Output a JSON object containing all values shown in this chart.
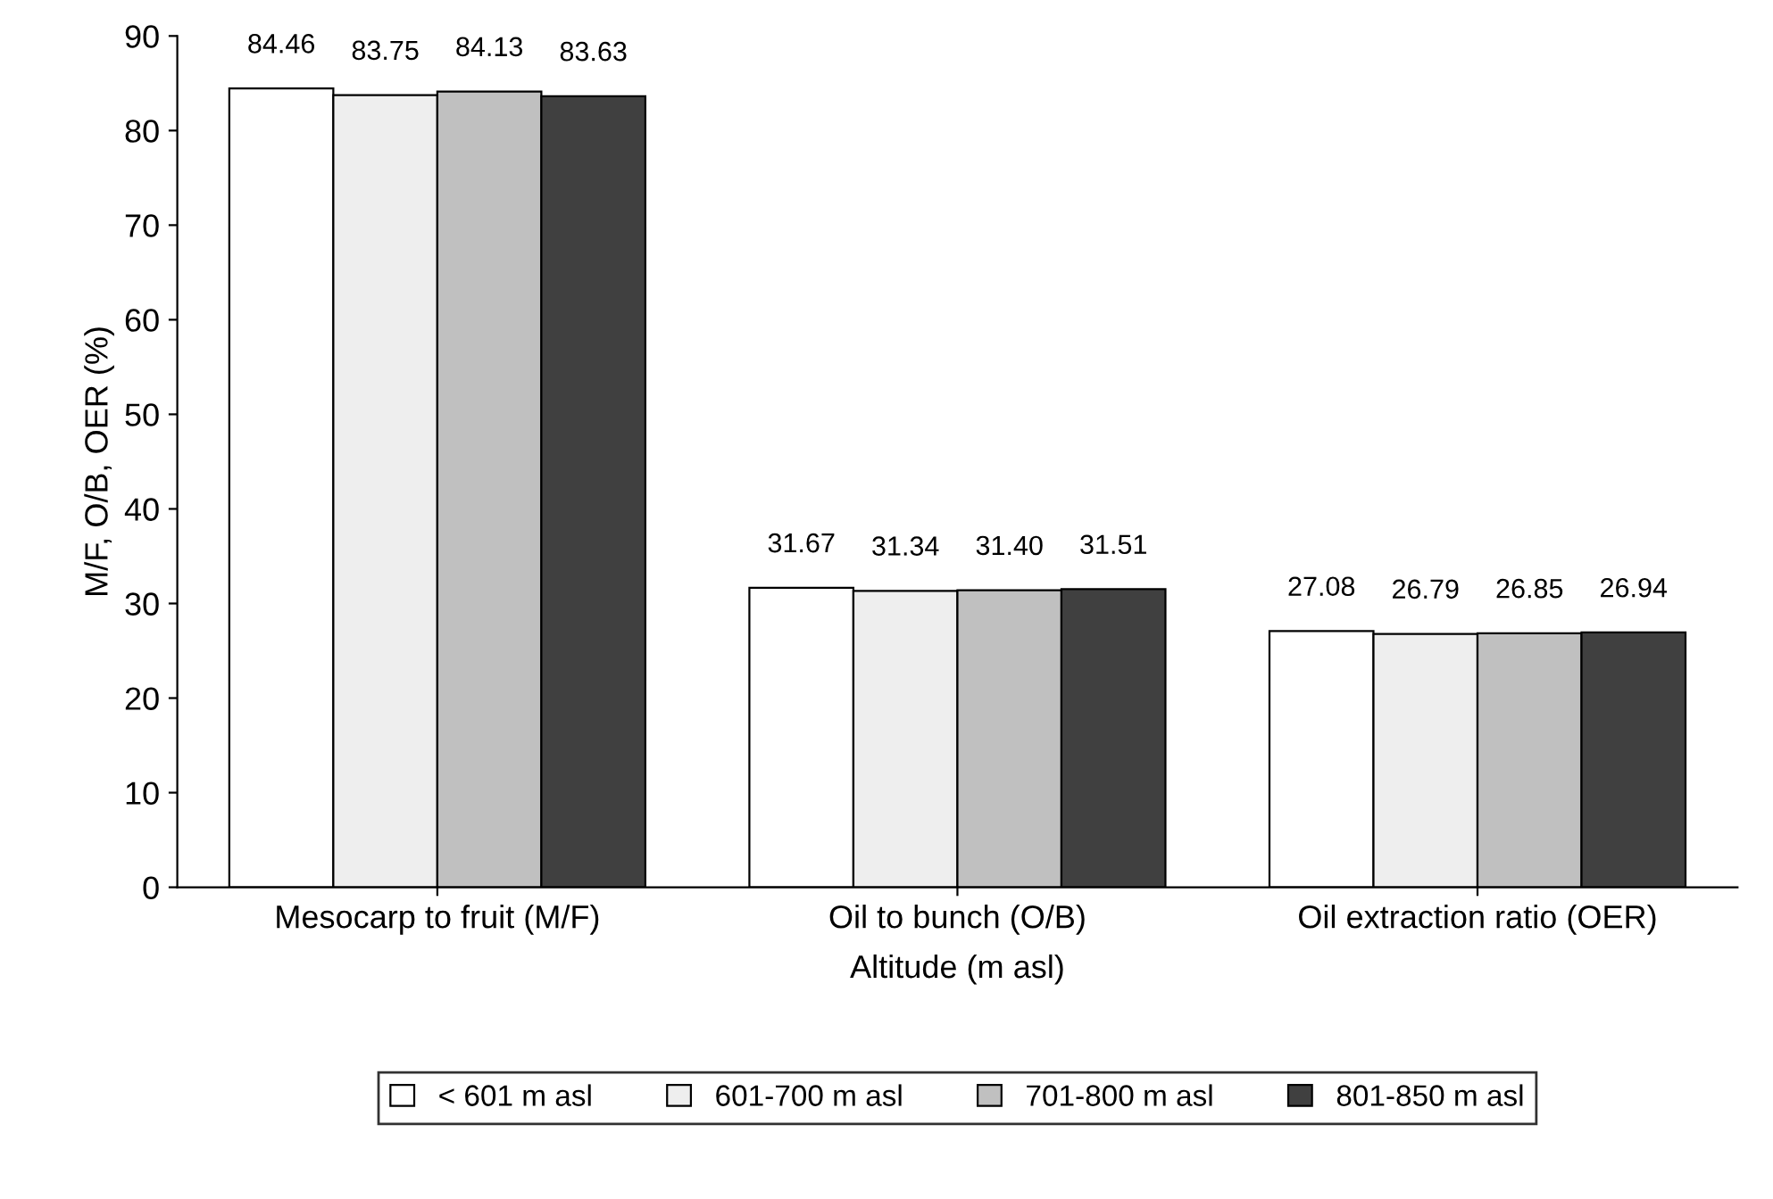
{
  "chart_data": {
    "type": "bar",
    "xlabel": "Altitude (m asl)",
    "ylabel": "M/F, O/B, OER (%)",
    "categories": [
      "Mesocarp to fruit (M/F)",
      "Oil to bunch (O/B)",
      "Oil extraction ratio (OER)"
    ],
    "series": [
      {
        "name": "< 601 m asl",
        "color": "#ffffff",
        "values": [
          84.46,
          31.67,
          27.08
        ]
      },
      {
        "name": "601-700 m asl",
        "color": "#eeeeee",
        "values": [
          83.75,
          31.34,
          26.79
        ]
      },
      {
        "name": "701-800 m asl",
        "color": "#c0c0c0",
        "values": [
          84.13,
          31.4,
          26.85
        ]
      },
      {
        "name": "801-850 m asl",
        "color": "#404040",
        "values": [
          83.63,
          31.51,
          26.94
        ]
      }
    ],
    "value_labels": [
      [
        "84.46",
        "31.67",
        "27.08"
      ],
      [
        "83.75",
        "31.34",
        "26.79"
      ],
      [
        "84.13",
        "31.40",
        "26.85"
      ],
      [
        "83.63",
        "31.51",
        "26.94"
      ]
    ],
    "ylim": [
      0,
      90
    ],
    "yticks": [
      0,
      10,
      20,
      30,
      40,
      50,
      60,
      70,
      80,
      90
    ],
    "grid": false,
    "legend": "bottom"
  }
}
